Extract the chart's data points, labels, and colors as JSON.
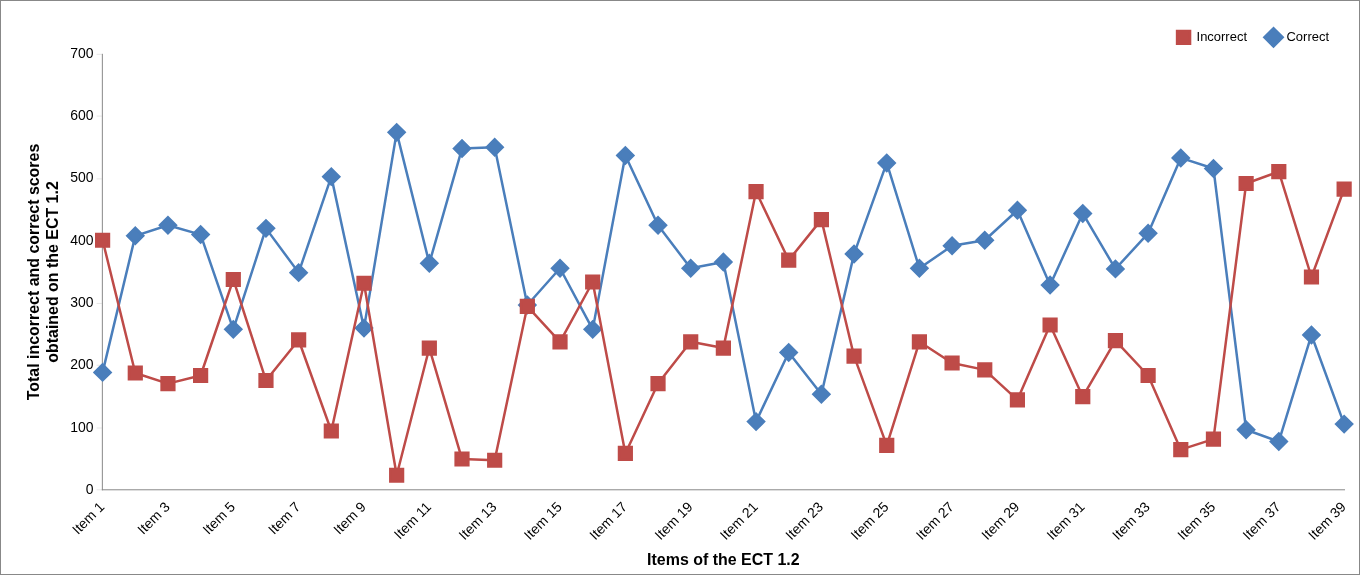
{
  "chart_data": {
    "type": "line",
    "xlabel": "Items of the ECT 1.2",
    "ylabel": "Total incorrect and correct scores obtained on the ECT 1.2",
    "categories": [
      "Item 1",
      null,
      "Item 3",
      null,
      "Item 5",
      null,
      "Item 7",
      null,
      "Item 9",
      null,
      "Item 11",
      null,
      "Item 13",
      null,
      "Item 15",
      null,
      "Item 17",
      null,
      "Item 19",
      null,
      "Item 21",
      null,
      "Item 23",
      null,
      "Item 25",
      null,
      "Item 27",
      null,
      "Item 29",
      null,
      "Item 31",
      null,
      "Item 33",
      null,
      "Item 35",
      null,
      "Item 37",
      null,
      "Item 39"
    ],
    "series": [
      {
        "name": "Correct",
        "color": "#4a7ebb",
        "marker": "diamond",
        "values": [
          189,
          408,
          425,
          410,
          258,
          420,
          349,
          503,
          260,
          574,
          364,
          548,
          550,
          297,
          356,
          258,
          537,
          425,
          356,
          366,
          110,
          221,
          154,
          379,
          525,
          356,
          392,
          401,
          449,
          329,
          444,
          355,
          412,
          533,
          516,
          97,
          78,
          249,
          106
        ]
      },
      {
        "name": "Incorrect",
        "color": "#be4b48",
        "marker": "square",
        "values": [
          401,
          188,
          171,
          184,
          338,
          176,
          241,
          95,
          332,
          24,
          228,
          50,
          48,
          295,
          238,
          334,
          59,
          171,
          238,
          228,
          479,
          369,
          434,
          215,
          72,
          238,
          204,
          193,
          145,
          265,
          150,
          240,
          184,
          65,
          82,
          492,
          511,
          342,
          483
        ]
      }
    ],
    "ylim": [
      0,
      700
    ],
    "yticks": [
      0,
      100,
      200,
      300,
      400,
      500,
      600,
      700
    ],
    "grid": false,
    "legend": "top right",
    "line_style": "solid"
  }
}
